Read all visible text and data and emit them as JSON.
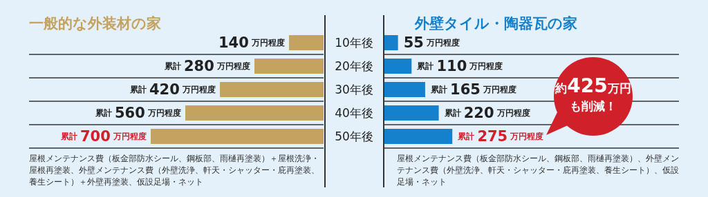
{
  "chart_data": [
    {
      "type": "bar",
      "orientation": "horizontal",
      "title": "一般的な外装材の家",
      "categories": [
        "10年後",
        "20年後",
        "30年後",
        "40年後",
        "50年後"
      ],
      "values": [
        140,
        280,
        420,
        560,
        700
      ],
      "color": "#c4a25f",
      "grid": "y",
      "value_labels": [
        "140 万円程度",
        "累計 280 万円程度",
        "累計 420 万円程度",
        "累計 560 万円程度",
        "累計 700 万円程度"
      ],
      "annotations": [
        "屋根メンテナンス費（板金部防水シール、鋼板部、雨樋再塗装）＋屋根洗浄・屋根再塗装、外壁メンテナンス費（外壁洗浄、軒天・シャッター・庇再塗装、養生シート）＋外壁再塗装、仮設足場・ネット"
      ]
    },
    {
      "type": "bar",
      "orientation": "horizontal",
      "title": "外壁タイル・陶器瓦の家",
      "categories": [
        null,
        null,
        null,
        null,
        null
      ],
      "values": [
        55,
        110,
        165,
        220,
        275
      ],
      "color": "#1580cc",
      "grid": "y",
      "value_labels": [
        "55 万円程度",
        "累計 110 万円程度",
        "累計 165 万円程度",
        "累計 220 万円程度",
        "累計 275 万円程度"
      ],
      "annotations": [
        "約425万円も削減！",
        "屋根メンテナンス費（板金部防水シール、鋼板部、雨樋再塗装）、外壁メンテナンス費（外壁洗浄、軒天・シャッター・庇再塗装、養生シート）、仮設足場・ネット"
      ]
    }
  ]
}
